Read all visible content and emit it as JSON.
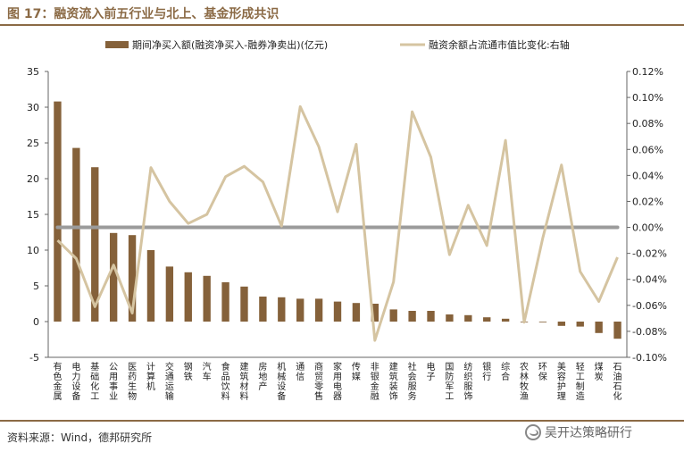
{
  "header": {
    "title": "图 17：融资流入前五行业与北上、基金形成共识"
  },
  "footer": {
    "source": "资料来源：Wind，德邦研究所",
    "watermark": "吴开达策略研行"
  },
  "colors": {
    "bar": "#85613a",
    "line": "#d5c4a1",
    "zero_line": "#9b9b9b",
    "accent": "#8b6a45"
  },
  "chart_data": {
    "type": "bar",
    "categories": [
      "有色金属",
      "电力设备",
      "基础化工",
      "公用事业",
      "医药生物",
      "计算机",
      "交通运输",
      "钢铁",
      "汽车",
      "食品饮料",
      "建筑材料",
      "房地产",
      "机械设备",
      "通信",
      "商贸零售",
      "家用电器",
      "传媒",
      "非银金融",
      "建筑装饰",
      "社会服务",
      "电子",
      "国防军工",
      "纺织服饰",
      "银行",
      "综合",
      "农林牧渔",
      "环保",
      "美容护理",
      "轻工制造",
      "煤炭",
      "石油石化"
    ],
    "series": [
      {
        "name": "期间净买入额(融资净买入-融券净卖出)(亿元)",
        "type": "bar",
        "axis": "left",
        "values": [
          30.8,
          24.3,
          21.6,
          12.4,
          12.1,
          10.0,
          7.7,
          6.9,
          6.4,
          5.5,
          4.9,
          3.5,
          3.4,
          3.2,
          3.2,
          2.8,
          2.6,
          2.5,
          1.7,
          1.5,
          1.5,
          1.0,
          0.9,
          0.6,
          0.4,
          -0.1,
          -0.1,
          -0.6,
          -0.7,
          -1.6,
          -2.4
        ]
      },
      {
        "name": "融资余额占流通市值比变化:右轴",
        "type": "line",
        "axis": "right",
        "values": [
          -0.01,
          -0.024,
          -0.061,
          -0.029,
          -0.066,
          0.046,
          0.02,
          0.003,
          0.01,
          0.039,
          0.047,
          0.035,
          0.001,
          0.093,
          0.062,
          0.012,
          0.064,
          -0.087,
          -0.042,
          0.089,
          0.054,
          -0.021,
          0.017,
          -0.014,
          0.067,
          -0.073,
          -0.008,
          0.048,
          -0.034,
          -0.057,
          -0.023
        ]
      }
    ],
    "y_left": {
      "min": -5,
      "max": 35,
      "step": 5,
      "ticks": [
        "-5",
        "0",
        "5",
        "10",
        "15",
        "20",
        "25",
        "30",
        "35"
      ]
    },
    "y_right": {
      "min": -0.1,
      "max": 0.12,
      "step": 0.02,
      "ticks": [
        "-0.10%",
        "-0.08%",
        "-0.06%",
        "-0.04%",
        "-0.02%",
        "0.00%",
        "0.02%",
        "0.04%",
        "0.06%",
        "0.08%",
        "0.10%",
        "0.12%"
      ]
    },
    "legend_position": "top",
    "grid": false
  }
}
